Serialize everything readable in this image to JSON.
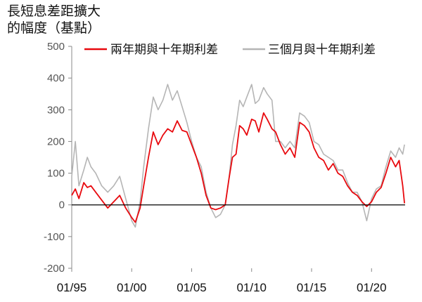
{
  "chart_data": {
    "type": "line",
    "title": [
      "長短息差距擴大",
      "的幅度（基點）"
    ],
    "xlabel": "",
    "ylabel": "",
    "ylim": [
      -200,
      500
    ],
    "yticks": [
      -200,
      -100,
      0,
      100,
      200,
      300,
      400,
      500
    ],
    "xlim": [
      1995.0,
      2022.8
    ],
    "xticks": [
      {
        "label": "01/95",
        "x": 1995.0
      },
      {
        "label": "01/00",
        "x": 2000.0
      },
      {
        "label": "01/05",
        "x": 2005.0
      },
      {
        "label": "01/10",
        "x": 2010.0
      },
      {
        "label": "01/15",
        "x": 2015.0
      },
      {
        "label": "01/20",
        "x": 2020.0
      }
    ],
    "grid": false,
    "legend_position": "top",
    "series": [
      {
        "name": "兩年期與十年期利差",
        "color": "#e8090e",
        "x": [
          1995.0,
          1995.3,
          1995.6,
          1996.0,
          1996.3,
          1996.6,
          1997.0,
          1997.5,
          1998.0,
          1998.5,
          1999.0,
          1999.5,
          2000.0,
          2000.3,
          2000.7,
          2001.0,
          2001.4,
          2001.8,
          2002.2,
          2002.6,
          2003.0,
          2003.4,
          2003.8,
          2004.2,
          2004.6,
          2005.0,
          2005.4,
          2005.8,
          2006.2,
          2006.6,
          2007.0,
          2007.4,
          2007.8,
          2008.1,
          2008.4,
          2008.7,
          2009.0,
          2009.3,
          2009.6,
          2010.0,
          2010.3,
          2010.6,
          2011.0,
          2011.3,
          2011.7,
          2012.0,
          2012.4,
          2012.8,
          2013.2,
          2013.6,
          2014.0,
          2014.4,
          2014.8,
          2015.2,
          2015.6,
          2016.0,
          2016.4,
          2016.8,
          2017.2,
          2017.6,
          2018.0,
          2018.4,
          2018.8,
          2019.2,
          2019.6,
          2020.0,
          2020.4,
          2020.8,
          2021.2,
          2021.6,
          2022.0,
          2022.3,
          2022.6,
          2022.75
        ],
        "y": [
          30,
          50,
          20,
          70,
          55,
          60,
          40,
          15,
          -10,
          10,
          30,
          -10,
          -40,
          -55,
          -10,
          60,
          150,
          230,
          190,
          220,
          240,
          230,
          265,
          235,
          230,
          190,
          150,
          100,
          30,
          -10,
          -15,
          -10,
          0,
          80,
          150,
          160,
          250,
          240,
          220,
          270,
          265,
          230,
          290,
          270,
          240,
          230,
          190,
          160,
          180,
          150,
          260,
          250,
          230,
          180,
          150,
          140,
          110,
          130,
          100,
          90,
          60,
          40,
          30,
          10,
          -5,
          10,
          40,
          55,
          100,
          150,
          120,
          140,
          60,
          5
        ]
      },
      {
        "name": "三個月與十年期利差",
        "color": "#b5b5b5",
        "x": [
          1995.0,
          1995.3,
          1995.6,
          1996.0,
          1996.3,
          1996.6,
          1997.0,
          1997.5,
          1998.0,
          1998.5,
          1999.0,
          1999.5,
          2000.0,
          2000.3,
          2000.7,
          2001.0,
          2001.4,
          2001.8,
          2002.2,
          2002.6,
          2003.0,
          2003.4,
          2003.8,
          2004.2,
          2004.6,
          2005.0,
          2005.4,
          2005.8,
          2006.2,
          2006.6,
          2007.0,
          2007.4,
          2007.8,
          2008.1,
          2008.4,
          2008.7,
          2009.0,
          2009.3,
          2009.6,
          2010.0,
          2010.3,
          2010.6,
          2011.0,
          2011.3,
          2011.7,
          2012.0,
          2012.4,
          2012.8,
          2013.2,
          2013.6,
          2014.0,
          2014.4,
          2014.8,
          2015.2,
          2015.6,
          2016.0,
          2016.4,
          2016.8,
          2017.2,
          2017.6,
          2018.0,
          2018.4,
          2018.8,
          2019.2,
          2019.6,
          2020.0,
          2020.4,
          2020.8,
          2021.2,
          2021.6,
          2022.0,
          2022.3,
          2022.6,
          2022.75
        ],
        "y": [
          90,
          200,
          60,
          110,
          150,
          120,
          100,
          60,
          40,
          60,
          90,
          20,
          -50,
          -70,
          10,
          120,
          240,
          340,
          300,
          330,
          380,
          330,
          360,
          310,
          260,
          200,
          150,
          120,
          40,
          -10,
          -40,
          -30,
          0,
          80,
          190,
          250,
          330,
          310,
          340,
          380,
          320,
          330,
          370,
          350,
          330,
          200,
          200,
          180,
          200,
          180,
          290,
          280,
          260,
          200,
          190,
          160,
          150,
          140,
          110,
          110,
          70,
          40,
          40,
          10,
          -50,
          20,
          50,
          60,
          120,
          170,
          150,
          180,
          160,
          190
        ]
      }
    ]
  }
}
